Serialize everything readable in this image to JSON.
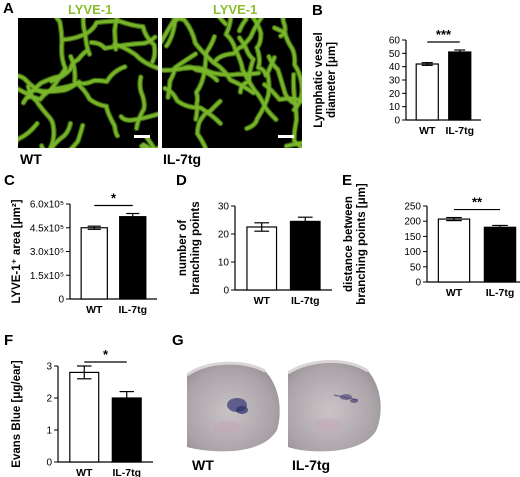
{
  "panels": {
    "a": {
      "letter": "A",
      "images": [
        {
          "title": "LYVE-1",
          "caption": "WT",
          "seed": 3
        },
        {
          "title": "LYVE-1",
          "caption": "IL-7tg",
          "seed": 11
        }
      ]
    },
    "g": {
      "letter": "G",
      "images": [
        {
          "caption": "WT"
        },
        {
          "caption": "IL-7tg"
        }
      ]
    }
  },
  "colors": {
    "vessel": "#7ab62a",
    "vessel_dark": "#3f6e12",
    "bar_wt": "#ffffff",
    "bar_il7": "#000000",
    "axis": "#000000"
  },
  "chart_data": [
    {
      "letter": "B",
      "type": "bar",
      "categories": [
        "WT",
        "IL-7tg"
      ],
      "values": [
        42,
        51
      ],
      "errors": [
        1,
        1.5
      ],
      "ylabel_lines": [
        "Lymphatic  vessel",
        "diameter  [μm]"
      ],
      "ylim": [
        0,
        60
      ],
      "yticks": [
        0,
        10,
        20,
        30,
        40,
        50,
        60
      ],
      "ytick_labels": [
        "0",
        "10",
        "20",
        "30",
        "40",
        "50",
        "60"
      ],
      "significance": "***"
    },
    {
      "letter": "C",
      "type": "bar",
      "categories": [
        "WT",
        "IL-7tg"
      ],
      "values": [
        450000,
        520000
      ],
      "errors": [
        10000,
        20000
      ],
      "ylabel_lines": [
        "LYVE-1⁺ area [μm²]"
      ],
      "ylim": [
        0,
        600000
      ],
      "yticks": [
        0,
        150000,
        300000,
        450000,
        600000
      ],
      "ytick_labels": [
        "0",
        "1.5x10⁵",
        "3.0x10⁵",
        "4.5x10⁵",
        "6.0x10⁵"
      ],
      "significance": "*"
    },
    {
      "letter": "D",
      "type": "bar",
      "categories": [
        "WT",
        "IL-7tg"
      ],
      "values": [
        22.5,
        24.5
      ],
      "errors": [
        1.5,
        1.5
      ],
      "ylabel_lines": [
        "number  of",
        "branching points"
      ],
      "ylim": [
        0,
        30
      ],
      "yticks": [
        0,
        10,
        20,
        30
      ],
      "ytick_labels": [
        "0",
        "10",
        "20",
        "30"
      ],
      "significance": ""
    },
    {
      "letter": "E",
      "type": "bar",
      "categories": [
        "WT",
        "IL-7tg"
      ],
      "values": [
        207,
        180
      ],
      "errors": [
        5,
        6
      ],
      "ylabel_lines": [
        "distance  between",
        "branching points [μm]"
      ],
      "ylim": [
        0,
        250
      ],
      "yticks": [
        0,
        50,
        100,
        150,
        200,
        250
      ],
      "ytick_labels": [
        "0",
        "50",
        "100",
        "150",
        "200",
        "250"
      ],
      "significance": "**"
    },
    {
      "letter": "F",
      "type": "bar",
      "categories": [
        "WT",
        "IL-7tg"
      ],
      "values": [
        2.8,
        2.0
      ],
      "errors": [
        0.2,
        0.2
      ],
      "ylabel_lines": [
        "Evans Blue [μg/ear]"
      ],
      "ylim": [
        0,
        3
      ],
      "yticks": [
        0,
        1,
        2,
        3
      ],
      "ytick_labels": [
        "0",
        "1",
        "2",
        "3"
      ],
      "significance": "*"
    }
  ]
}
